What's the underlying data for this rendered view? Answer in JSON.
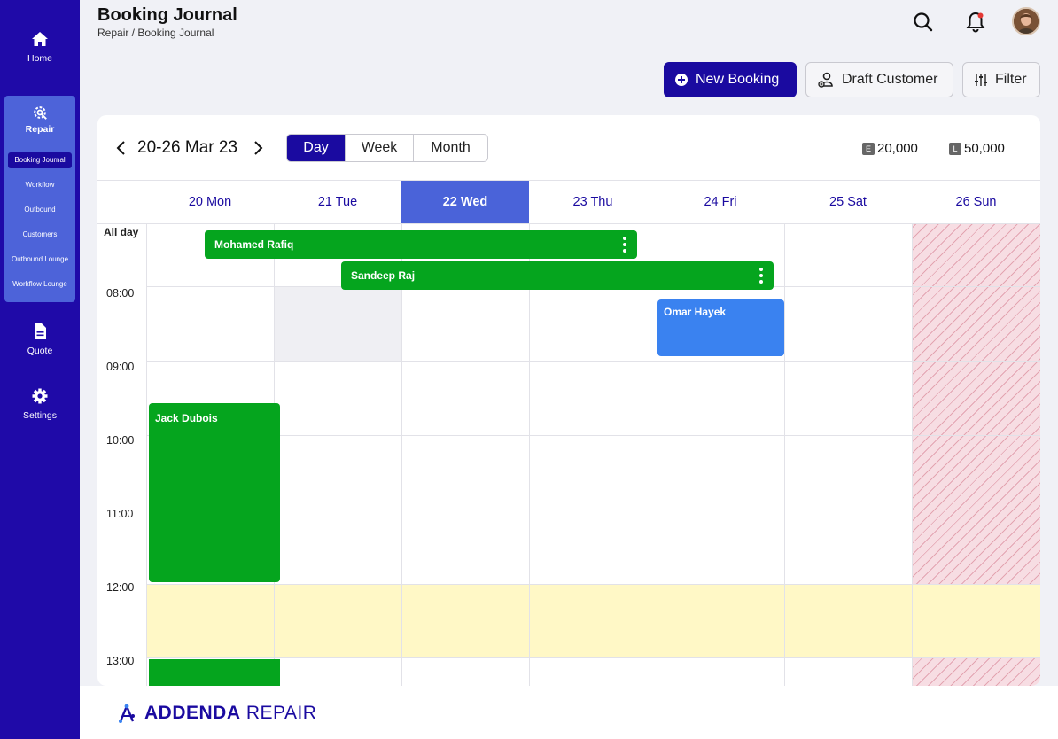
{
  "app": {
    "brand_bold": "ADDENDA",
    "brand_rest": "REPAIR"
  },
  "header": {
    "title": "Booking Journal",
    "breadcrumb": "Repair / Booking Journal"
  },
  "sidebar": {
    "home": "Home",
    "repair": "Repair",
    "repair_items": [
      "Booking Journal",
      "Workflow",
      "Outbound",
      "Customers",
      "Outbound Lounge",
      "Workflow Lounge"
    ],
    "quote": "Quote",
    "settings": "Settings"
  },
  "toolbar": {
    "new_booking": "New Booking",
    "draft_customer": "Draft Customer",
    "filter": "Filter"
  },
  "calendar": {
    "range": "20-26 Mar 23",
    "views": [
      "Day",
      "Week",
      "Month"
    ],
    "active_view": "Day",
    "counters": [
      {
        "tag": "E",
        "value": "20,000"
      },
      {
        "tag": "L",
        "value": "50,000"
      }
    ],
    "days": [
      "20 Mon",
      "21 Tue",
      "22 Wed",
      "23 Thu",
      "24 Fri",
      "25 Sat",
      "26 Sun"
    ],
    "today": "22 Wed",
    "all_day_label": "All day",
    "times": [
      "08:00",
      "09:00",
      "10:00",
      "11:00",
      "12:00",
      "13:00"
    ],
    "events": {
      "mohamed": "Mohamed Rafiq",
      "sandeep": "Sandeep Raj",
      "omar": "Omar Hayek",
      "jack": "Jack Dubois"
    }
  },
  "colors": {
    "primary": "#1a0aa0",
    "sidebar": "#1f0aa8",
    "green_event": "#05a51e",
    "blue_event": "#3a82f0",
    "lunch": "#fff8c6",
    "notification": "#e53935"
  },
  "icons": [
    "home-icon",
    "repair-icon",
    "quote-icon",
    "settings-icon",
    "search-icon",
    "bell-icon",
    "plus-circle-icon",
    "draft-customer-icon",
    "filter-icon",
    "chevron-left-icon",
    "chevron-right-icon"
  ]
}
